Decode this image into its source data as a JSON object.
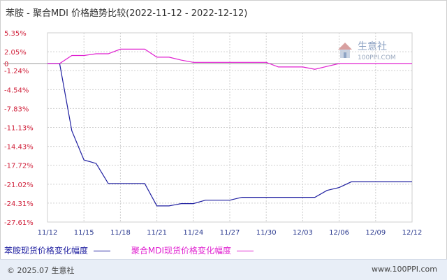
{
  "header": {
    "title": "苯胺 - 聚合MDI 价格趋势比较(2022-11-12 - 2022-12-12)"
  },
  "watermark": {
    "name": "生意社",
    "url": "100PPI.COM"
  },
  "footer": {
    "copyright": "© 2025.07 生意社",
    "site": "www.100PPI.com"
  },
  "colors": {
    "series_1": "#1e1ea0",
    "series_2": "#e020d0",
    "y_labels": "#d0203a",
    "x_labels": "#2b3a8f",
    "grid": "#cfcfcf"
  },
  "chart_data": {
    "type": "line",
    "title": "苯胺 - 聚合MDI 价格趋势比较(2022-11-12 - 2022-12-12)",
    "x": [
      "11/12",
      "11/13",
      "11/14",
      "11/15",
      "11/16",
      "11/17",
      "11/18",
      "11/19",
      "11/20",
      "11/21",
      "11/22",
      "11/23",
      "11/24",
      "11/25",
      "11/26",
      "11/27",
      "11/28",
      "11/29",
      "11/30",
      "12/01",
      "12/02",
      "12/03",
      "12/04",
      "12/05",
      "12/06",
      "12/07",
      "12/08",
      "12/09",
      "12/10",
      "12/11",
      "12/12"
    ],
    "x_tick_labels": [
      "11/12",
      "11/15",
      "11/18",
      "11/21",
      "11/24",
      "11/27",
      "11/30",
      "12/03",
      "12/06",
      "12/09",
      "12/12"
    ],
    "y_tick_labels": [
      "5.35%",
      "2.05%",
      "0",
      "-1.24%",
      "-4.54%",
      "-7.83%",
      "-11.13%",
      "-14.43%",
      "-17.72%",
      "-21.02%",
      "-24.31%",
      "-27.61%"
    ],
    "ylim": [
      -27.61,
      5.35
    ],
    "grid": true,
    "legend_position": "bottom-left",
    "series": [
      {
        "name": "苯胺现货价格变化幅度",
        "color": "#1e1ea0",
        "values": [
          0,
          0,
          -11.7,
          -16.8,
          -17.4,
          -20.9,
          -20.9,
          -20.9,
          -20.9,
          -24.8,
          -24.8,
          -24.4,
          -24.4,
          -23.8,
          -23.8,
          -23.8,
          -23.3,
          -23.3,
          -23.3,
          -23.3,
          -23.3,
          -23.3,
          -23.3,
          -22.1,
          -21.6,
          -20.6,
          -20.6,
          -20.6,
          -20.6,
          -20.6,
          -20.6
        ]
      },
      {
        "name": "聚合MDI现货价格变化幅度",
        "color": "#e020d0",
        "values": [
          0,
          0,
          1.4,
          1.4,
          1.7,
          1.7,
          2.5,
          2.5,
          2.5,
          1.1,
          1.1,
          0.6,
          0.2,
          0.2,
          0.2,
          0.2,
          0.2,
          0.2,
          0.2,
          -0.6,
          -0.6,
          -0.6,
          -1.0,
          -0.5,
          0,
          0,
          0,
          0,
          0,
          0,
          0
        ]
      }
    ]
  }
}
